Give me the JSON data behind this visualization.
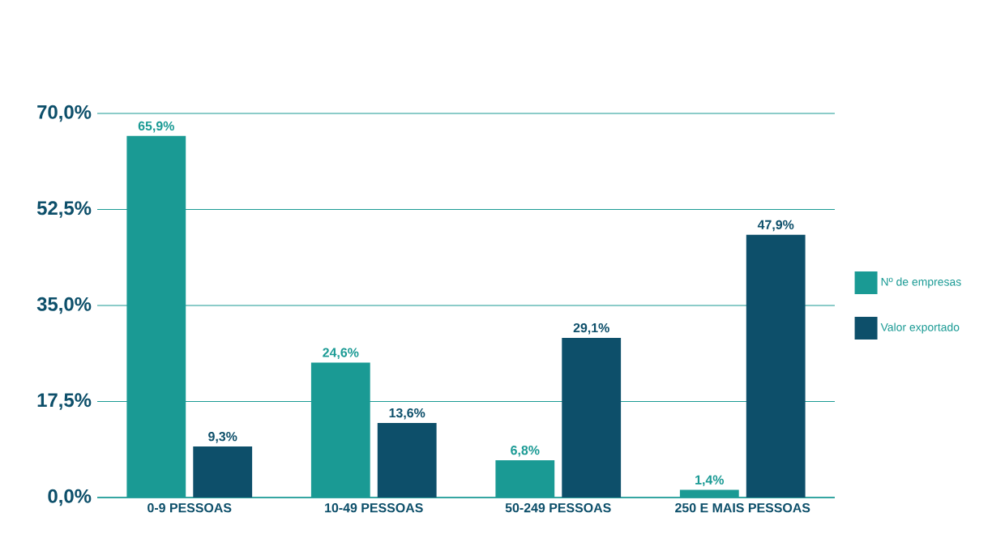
{
  "chart_data": {
    "type": "bar",
    "categories": [
      "0-9 PESSOAS",
      "10-49 PESSOAS",
      "50-249 PESSOAS",
      "250 E MAIS PESSOAS"
    ],
    "series": [
      {
        "name": "Nº de empresas",
        "color": "#1a9a94",
        "values": [
          65.9,
          24.6,
          6.8,
          1.4
        ],
        "value_labels": [
          "65,9%",
          "24,6%",
          "6,8%",
          "1,4%"
        ]
      },
      {
        "name": "Valor exportado",
        "color": "#0d4f6a",
        "values": [
          9.3,
          13.6,
          29.1,
          47.9
        ],
        "value_labels": [
          "9,3%",
          "13,6%",
          "29,1%",
          "47,9%"
        ]
      }
    ],
    "ylim": [
      0,
      70
    ],
    "yticks": [
      {
        "value": 0,
        "label": "0,0%"
      },
      {
        "value": 17.5,
        "label": "17,5%"
      },
      {
        "value": 35,
        "label": "35,0%"
      },
      {
        "value": 52.5,
        "label": "52,5%"
      },
      {
        "value": 70,
        "label": "70,0%"
      }
    ],
    "grid": "y",
    "legend": "right"
  }
}
